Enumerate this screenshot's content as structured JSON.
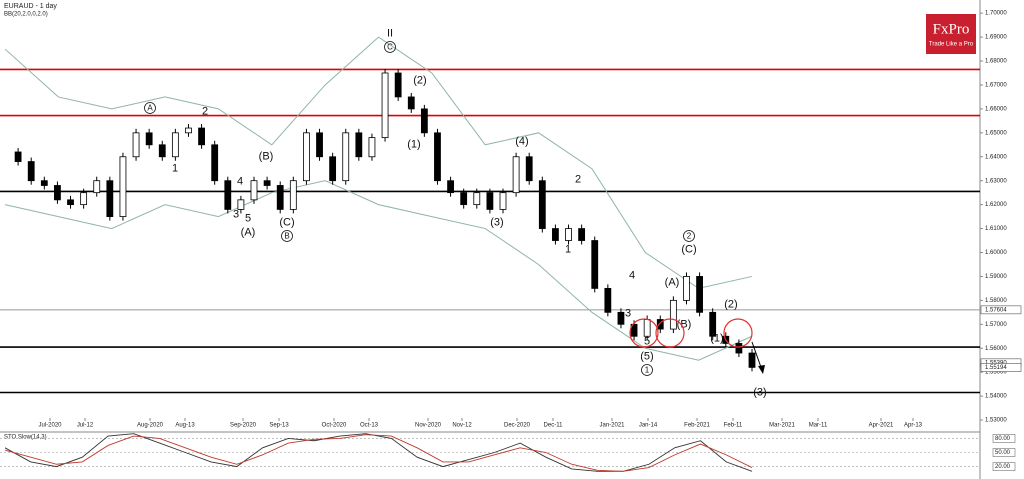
{
  "chart_data": {
    "type": "candlestick",
    "title": "EURAUD - 1 day",
    "subtitle": "BB(20,2.0,0,2.0)",
    "brand": "FxPro",
    "tagline": "Trade Like a Pro",
    "closes": [
      1.642,
      1.638,
      1.63,
      1.628,
      1.622,
      1.62,
      1.625,
      1.63,
      1.615,
      1.64,
      1.65,
      1.645,
      1.64,
      1.65,
      1.652,
      1.645,
      1.63,
      1.618,
      1.622,
      1.63,
      1.628,
      1.618,
      1.63,
      1.65,
      1.64,
      1.63,
      1.65,
      1.64,
      1.648,
      1.675,
      1.665,
      1.66,
      1.65,
      1.63,
      1.625,
      1.62,
      1.625,
      1.618,
      1.625,
      1.64,
      1.63,
      1.61,
      1.605,
      1.61,
      1.605,
      1.585,
      1.575,
      1.57,
      1.565,
      1.572,
      1.568,
      1.58,
      1.59,
      1.575,
      1.565,
      1.562,
      1.558,
      1.552
    ],
    "bands": [
      {
        "name": "upper",
        "color": "#8fb5a4",
        "values": [
          1.685,
          1.665,
          1.66,
          1.665,
          1.66,
          1.645,
          1.67,
          1.69,
          1.675,
          1.645,
          1.65,
          1.635,
          1.6,
          1.585,
          1.59
        ]
      },
      {
        "name": "lower",
        "color": "#8fb5a4",
        "values": [
          1.62,
          1.615,
          1.61,
          1.62,
          1.615,
          1.625,
          1.63,
          1.62,
          1.615,
          1.61,
          1.595,
          1.575,
          1.56,
          1.555,
          1.565
        ]
      }
    ],
    "ylim": [
      1.525,
      1.7055
    ],
    "yticks": [
      {
        "value": 1.7,
        "label": "1.70000"
      },
      {
        "value": 1.69,
        "label": "1.69000"
      },
      {
        "value": 1.68,
        "label": "1.68000"
      },
      {
        "value": 1.67,
        "label": "1.67000"
      },
      {
        "value": 1.66,
        "label": "1.66000"
      },
      {
        "value": 1.65,
        "label": "1.65000"
      },
      {
        "value": 1.64,
        "label": "1.64000"
      },
      {
        "value": 1.63,
        "label": "1.63000"
      },
      {
        "value": 1.62,
        "label": "1.62000"
      },
      {
        "value": 1.61,
        "label": "1.61000"
      },
      {
        "value": 1.6,
        "label": "1.60000"
      },
      {
        "value": 1.59,
        "label": "1.59000"
      },
      {
        "value": 1.58,
        "label": "1.58000"
      },
      {
        "value": 1.57,
        "label": "1.57000"
      },
      {
        "value": 1.56,
        "label": "1.56000"
      },
      {
        "value": 1.55,
        "label": "1.55000"
      },
      {
        "value": 1.54,
        "label": "1.54000"
      },
      {
        "value": 1.53,
        "label": "1.53000"
      }
    ],
    "price_labels": [
      {
        "value": 1.57604,
        "label": "1.57604"
      },
      {
        "value": 1.5539,
        "label": "1.55390"
      },
      {
        "value": 1.55194,
        "label": "1.55194"
      }
    ],
    "levels": [
      {
        "value": 1.6765,
        "color": "#e00000"
      },
      {
        "value": 1.6572,
        "color": "#e00000"
      },
      {
        "value": 1.6255,
        "color": "#000000"
      },
      {
        "value": 1.57604,
        "color": "#999999"
      },
      {
        "value": 1.5605,
        "color": "#000000"
      },
      {
        "value": 1.5415,
        "color": "#000000"
      }
    ],
    "categories": [
      "Jul-2020",
      "Jul-12",
      "Aug-2020",
      "Aug-13",
      "Sep-2020",
      "Sep-13",
      "Oct-2020",
      "Oct-13",
      "Nov-2020",
      "Nov-12",
      "Dec-2020",
      "Dec-11",
      "Jan-2021",
      "Jan-14",
      "Feb-2021",
      "Feb-11",
      "Mar-2021",
      "Mar-11",
      "Apr-2021",
      "Apr-13"
    ],
    "annotations": [
      "A",
      "2",
      "1",
      "4",
      "3",
      "5",
      "(A)",
      "(B)",
      "(C)",
      "B",
      "II",
      "C",
      "(2)",
      "(1)",
      "(4)",
      "(3)",
      "2",
      "1",
      "4",
      "3",
      "5",
      "(5)",
      "1",
      "(A)",
      "(B)",
      "2",
      "(C)",
      "(2)",
      "(1)",
      "(3)"
    ],
    "oscillator": {
      "title": "STO Slow(14,3)",
      "ylim": [
        0,
        100
      ],
      "yticks": [
        {
          "value": 80,
          "label": "80.00"
        },
        {
          "value": 50,
          "label": "50.00"
        },
        {
          "value": 20,
          "label": "20.00"
        }
      ],
      "series": [
        {
          "name": "K",
          "color": "#333333",
          "values": [
            60,
            30,
            20,
            40,
            85,
            90,
            70,
            50,
            30,
            20,
            60,
            80,
            75,
            85,
            90,
            80,
            40,
            20,
            35,
            50,
            70,
            40,
            15,
            10,
            10,
            25,
            60,
            75,
            30,
            10
          ]
        },
        {
          "name": "D",
          "color": "#c0392b",
          "values": [
            55,
            40,
            25,
            30,
            65,
            85,
            80,
            60,
            40,
            25,
            45,
            70,
            78,
            80,
            88,
            85,
            60,
            30,
            30,
            45,
            60,
            50,
            25,
            12,
            10,
            18,
            45,
            68,
            45,
            18
          ]
        }
      ]
    }
  }
}
